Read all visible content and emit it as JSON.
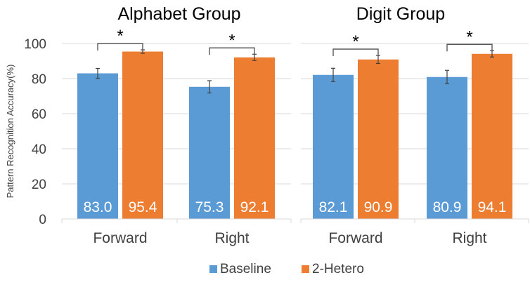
{
  "colors": {
    "baseline": "#5B9BD5",
    "hetero": "#ED7D31",
    "grid": "#D9D9D9",
    "text": "#404040",
    "bracket": "#595959"
  },
  "chart_data": {
    "type": "bar",
    "ylabel": "Pattern Recognition Accuracy(%)",
    "ylim": [
      0,
      100
    ],
    "yticks": [
      0,
      20,
      40,
      60,
      80,
      100
    ],
    "grid": true,
    "legend": {
      "position": "bottom",
      "entries": [
        "Baseline",
        "2-Hetero"
      ]
    },
    "significance_marker": "*",
    "panels": [
      {
        "title": "Alphabet Group",
        "categories": [
          "Forward",
          "Right"
        ],
        "series": [
          {
            "name": "Baseline",
            "values": [
              83.0,
              75.3
            ],
            "labels": [
              "83.0",
              "75.3"
            ],
            "errors": [
              2.8,
              3.5
            ]
          },
          {
            "name": "2-Hetero",
            "values": [
              95.4,
              92.1
            ],
            "labels": [
              "95.4",
              "92.1"
            ],
            "errors": [
              1.0,
              1.8
            ]
          }
        ],
        "significant": [
          true,
          true
        ]
      },
      {
        "title": "Digit Group",
        "categories": [
          "Forward",
          "Right"
        ],
        "series": [
          {
            "name": "Baseline",
            "values": [
              82.1,
              80.9
            ],
            "labels": [
              "82.1",
              "80.9"
            ],
            "errors": [
              3.8,
              3.8
            ]
          },
          {
            "name": "2-Hetero",
            "values": [
              90.9,
              94.1
            ],
            "labels": [
              "90.9",
              "94.1"
            ],
            "errors": [
              2.3,
              1.8
            ]
          }
        ],
        "significant": [
          true,
          true
        ]
      }
    ]
  }
}
